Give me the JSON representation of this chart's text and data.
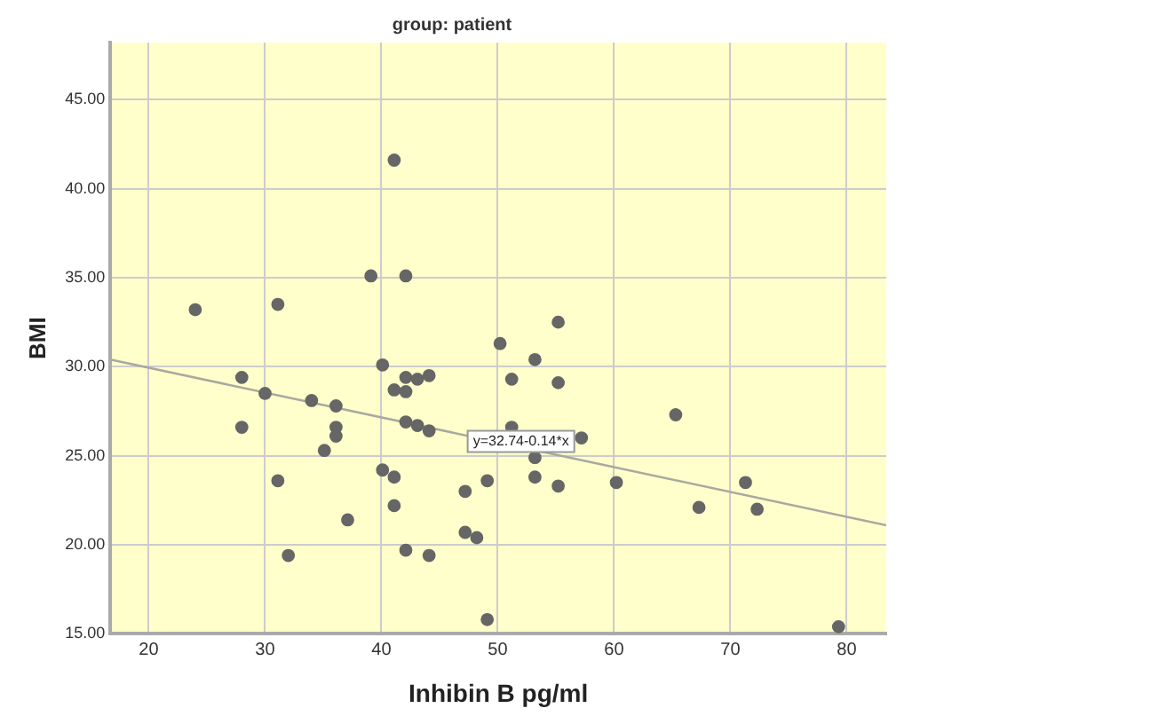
{
  "chart_data": {
    "type": "scatter",
    "title": "group: patient",
    "xlabel": "Inhibin B pg/ml",
    "ylabel": "BMI",
    "xlim": [
      16.7,
      83.4
    ],
    "ylim": [
      15,
      48.2
    ],
    "xticks": [
      20,
      30,
      40,
      50,
      60,
      70,
      80
    ],
    "yticks": [
      {
        "value": 15,
        "label": "15.00"
      },
      {
        "value": 20,
        "label": "20.00"
      },
      {
        "value": 25,
        "label": "25.00"
      },
      {
        "value": 30,
        "label": "30.00"
      },
      {
        "value": 35,
        "label": "35.00"
      },
      {
        "value": 40,
        "label": "40.00"
      },
      {
        "value": 45,
        "label": "45.00"
      }
    ],
    "grid": true,
    "legend": false,
    "marker": "circle",
    "annotations": [
      {
        "text": "y=32.74-0.14*x",
        "x": 52,
        "y": 25.8
      }
    ],
    "series": [
      {
        "color": "#666666",
        "x": [
          24,
          31.1,
          39.1,
          41.1,
          42.1,
          50.2,
          55.2,
          28,
          28,
          30,
          34,
          36.1,
          36.1,
          36.1,
          35.1,
          31.1,
          32,
          37.1,
          40.1,
          41.1,
          42.1,
          42.1,
          43.1,
          44.1,
          42.1,
          43.1,
          44.1,
          40.1,
          41.1,
          41.1,
          42.1,
          44.1,
          47.2,
          47.2,
          48.2,
          53.2,
          51.2,
          55.2,
          51.2,
          53.2,
          57.2,
          65.3,
          49.1,
          53.2,
          55.2,
          60.2,
          71.3,
          67.3,
          72.3,
          49.1,
          79.3
        ],
        "values": [
          33.2,
          33.5,
          35.1,
          41.6,
          35.1,
          31.3,
          32.5,
          29.4,
          26.6,
          28.5,
          28.1,
          27.8,
          26.6,
          26.1,
          25.3,
          23.6,
          19.4,
          21.4,
          30.1,
          28.7,
          29.4,
          28.6,
          29.3,
          29.5,
          26.9,
          26.7,
          26.4,
          24.2,
          23.8,
          22.2,
          19.7,
          19.4,
          23,
          20.7,
          20.4,
          30.4,
          29.3,
          29.1,
          26.6,
          24.9,
          26,
          27.3,
          23.6,
          23.8,
          23.3,
          23.5,
          23.5,
          22.1,
          22,
          15.8,
          15.4
        ]
      },
      {
        "type": "line",
        "color": "#a9a9a0",
        "marker": "none",
        "x": [
          16.7,
          83.4
        ],
        "values": [
          30.4,
          21.1
        ]
      }
    ]
  }
}
